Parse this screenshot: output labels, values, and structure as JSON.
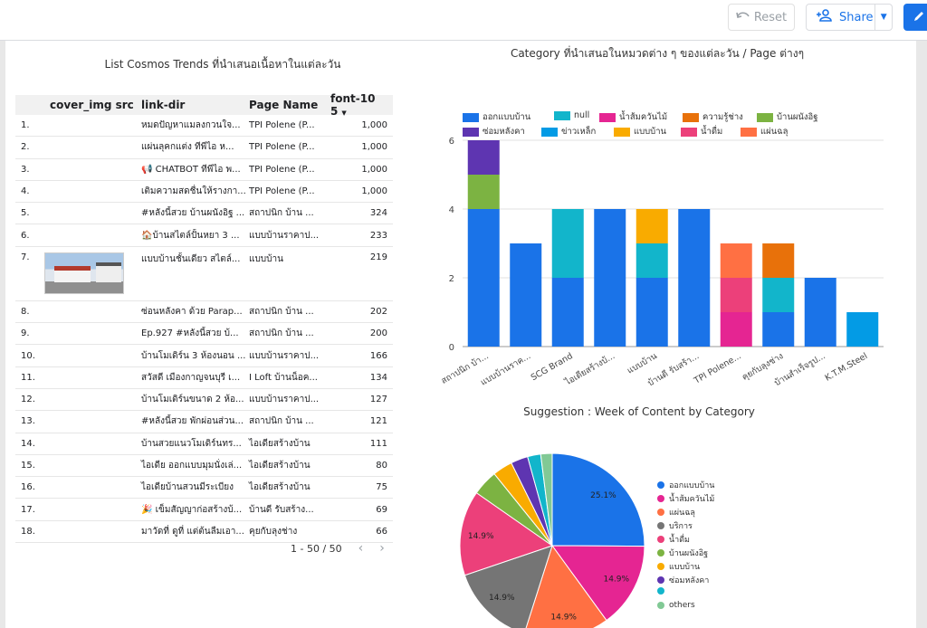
{
  "toolbar": {
    "reset_label": "Reset",
    "share_label": "Share"
  },
  "table": {
    "title": "List Cosmos Trends ที่นำเสนอเนื้อหาในแต่ละวัน",
    "columns": [
      "cover_img src",
      "link-dir",
      "Page Name",
      "font-10 5"
    ],
    "rows": [
      {
        "n": "1.",
        "link": "หมดปัญหาแมลงกวนใจ...",
        "page": "TPI Polene (P...",
        "v": "1,000"
      },
      {
        "n": "2.",
        "link": "แผ่นลุคกแต่ง ทีพีไอ ห...",
        "page": "TPI Polene (P...",
        "v": "1,000"
      },
      {
        "n": "3.",
        "link": "📢 CHATBOT ทีพีไอ พ...",
        "page": "TPI Polene (P...",
        "v": "1,000"
      },
      {
        "n": "4.",
        "link": "เติมความสดชื่นให้รางกา...",
        "page": "TPI Polene (P...",
        "v": "1,000"
      },
      {
        "n": "5.",
        "link": "#หลังนี้สวย บ้านผนังอิฐ ...",
        "page": "สถาปนิก บ้าน ...",
        "v": "324"
      },
      {
        "n": "6.",
        "link": "🏠บ้านสไตล์ปั้นหยา 3 ...",
        "page": "แบบบ้านราคาป...",
        "v": "233"
      },
      {
        "n": "7.",
        "link": "แบบบ้านชั้นเดียว สไตล์...",
        "page": "แบบบ้าน",
        "v": "219"
      },
      {
        "n": "8.",
        "link": "ซ่อนหลังคา ด้วย Parap...",
        "page": "สถาปนิก บ้าน ...",
        "v": "202"
      },
      {
        "n": "9.",
        "link": "Ep.927 #หลังนี้สวย บ้...",
        "page": "สถาปนิก บ้าน ...",
        "v": "200"
      },
      {
        "n": "10.",
        "link": "บ้านโมเดิร์น 3 ห้องนอน ...",
        "page": "แบบบ้านราคาป...",
        "v": "166"
      },
      {
        "n": "11.",
        "link": "สวัสดี เมืองกาญจนบุรี เ...",
        "page": "I Loft บ้านน็อค...",
        "v": "134"
      },
      {
        "n": "12.",
        "link": "บ้านโมเดิร์นขนาด 2 ห้อ...",
        "page": "แบบบ้านราคาป...",
        "v": "127"
      },
      {
        "n": "13.",
        "link": "#หลังนี้สวย พักผ่อนส่วน...",
        "page": "สถาปนิก บ้าน ...",
        "v": "121"
      },
      {
        "n": "14.",
        "link": "บ้านสวยแนวโมเดิร์นทร...",
        "page": "ไอเดียสร้างบ้าน",
        "v": "111"
      },
      {
        "n": "15.",
        "link": "ไอเดีย ออกแบบมุมนั่งเล่...",
        "page": "ไอเดียสร้างบ้าน",
        "v": "80"
      },
      {
        "n": "16.",
        "link": "ไอเดียบ้านสวนมีระเบียง",
        "page": "ไอเดียสร้างบ้าน",
        "v": "75"
      },
      {
        "n": "17.",
        "link": "🎉 เข็มสัญญาก่อสร้างบ้...",
        "page": "บ้านดี รับสร้าง...",
        "v": "69"
      },
      {
        "n": "18.",
        "link": "มาวัดที่ ดูที่ แต่ต้นลืมเอา...",
        "page": "คุยกับลุงช่าง",
        "v": "66"
      }
    ],
    "pager": "1 - 50 / 50"
  },
  "colors": {
    "ออกแบบบ้าน": "#1a73e8",
    "null": "#12b5cb",
    "น้ำส้มควันไม้": "#e52592",
    "ความรู้ช่าง": "#e8710a",
    "บ้านผนังอิฐ": "#7cb342",
    "ซ่อมหลังคา": "#5e35b1",
    "ข่าวเหล็ก": "#039be5",
    "แบบบ้าน": "#f9ab00",
    "น้ำดื่ม": "#ec407a",
    "แผ่นฉลุ": "#ff7043",
    "บริการ": "#757575",
    "others": "#81c995"
  },
  "chart_data": [
    {
      "type": "bar",
      "stacked": true,
      "title": "Category ที่นำเสนอในหมวดต่าง ๆ ของแต่ละวัน / Page ต่างๆ",
      "legend": [
        "ออกแบบบ้าน",
        "null",
        "น้ำส้มควันไม้",
        "ความรู้ช่าง",
        "บ้านผนังอิฐ",
        "ซ่อมหลังคา",
        "ข่าวเหล็ก",
        "แบบบ้าน",
        "น้ำดื่ม",
        "แผ่นฉลุ"
      ],
      "legend_position": "top",
      "categories": [
        "สถาปนิก บ้า...",
        "แบบบ้านราค...",
        "SCG Brand",
        "ไอเดียสร้างบ้...",
        "แบบบ้าน",
        "บ้านดี รับสร้า...",
        "TPI Polene...",
        "คุยกับลุงช่าง",
        "บ้านสำเร็จรูป...",
        "K.T.M.Steel"
      ],
      "stacks": [
        [
          [
            "ออกแบบบ้าน",
            4
          ],
          [
            "บ้านผนังอิฐ",
            1
          ],
          [
            "ซ่อมหลังคา",
            1
          ]
        ],
        [
          [
            "ออกแบบบ้าน",
            3
          ]
        ],
        [
          [
            "ออกแบบบ้าน",
            2
          ],
          [
            "null",
            2
          ]
        ],
        [
          [
            "ออกแบบบ้าน",
            4
          ]
        ],
        [
          [
            "ออกแบบบ้าน",
            2
          ],
          [
            "null",
            1
          ],
          [
            "แบบบ้าน",
            1
          ]
        ],
        [
          [
            "ออกแบบบ้าน",
            4
          ]
        ],
        [
          [
            "น้ำส้มควันไม้",
            1
          ],
          [
            "น้ำดื่ม",
            1
          ],
          [
            "แผ่นฉลุ",
            1
          ]
        ],
        [
          [
            "ออกแบบบ้าน",
            1
          ],
          [
            "null",
            1
          ],
          [
            "ความรู้ช่าง",
            1
          ]
        ],
        [
          [
            "ออกแบบบ้าน",
            2
          ]
        ],
        [
          [
            "ข่าวเหล็ก",
            1
          ]
        ]
      ],
      "yticks": [
        0,
        2,
        4,
        6
      ],
      "ylim": [
        0,
        6
      ],
      "grid": true
    },
    {
      "type": "pie",
      "title": "Suggestion : Week of Content by Category",
      "slices": [
        {
          "label": "ออกแบบบ้าน",
          "value": 25.1
        },
        {
          "label": "น้ำส้มควันไม้",
          "value": 14.9
        },
        {
          "label": "แผ่นฉลุ",
          "value": 14.9
        },
        {
          "label": "บริการ",
          "value": 14.9
        },
        {
          "label": "น้ำดื่ม",
          "value": 14.9
        },
        {
          "label": "บ้านผนังอิฐ",
          "value": 4.5
        },
        {
          "label": "แบบบ้าน",
          "value": 3.5
        },
        {
          "label": "ซ่อมหลังคา",
          "value": 3.0
        },
        {
          "label": "",
          "value": 2.3
        },
        {
          "label": "others",
          "value": 2.0
        }
      ],
      "labels_shown": [
        "25.1%",
        "14.9%",
        "14.9%",
        "14.9%",
        "14.9%"
      ],
      "legend_position": "right"
    }
  ]
}
